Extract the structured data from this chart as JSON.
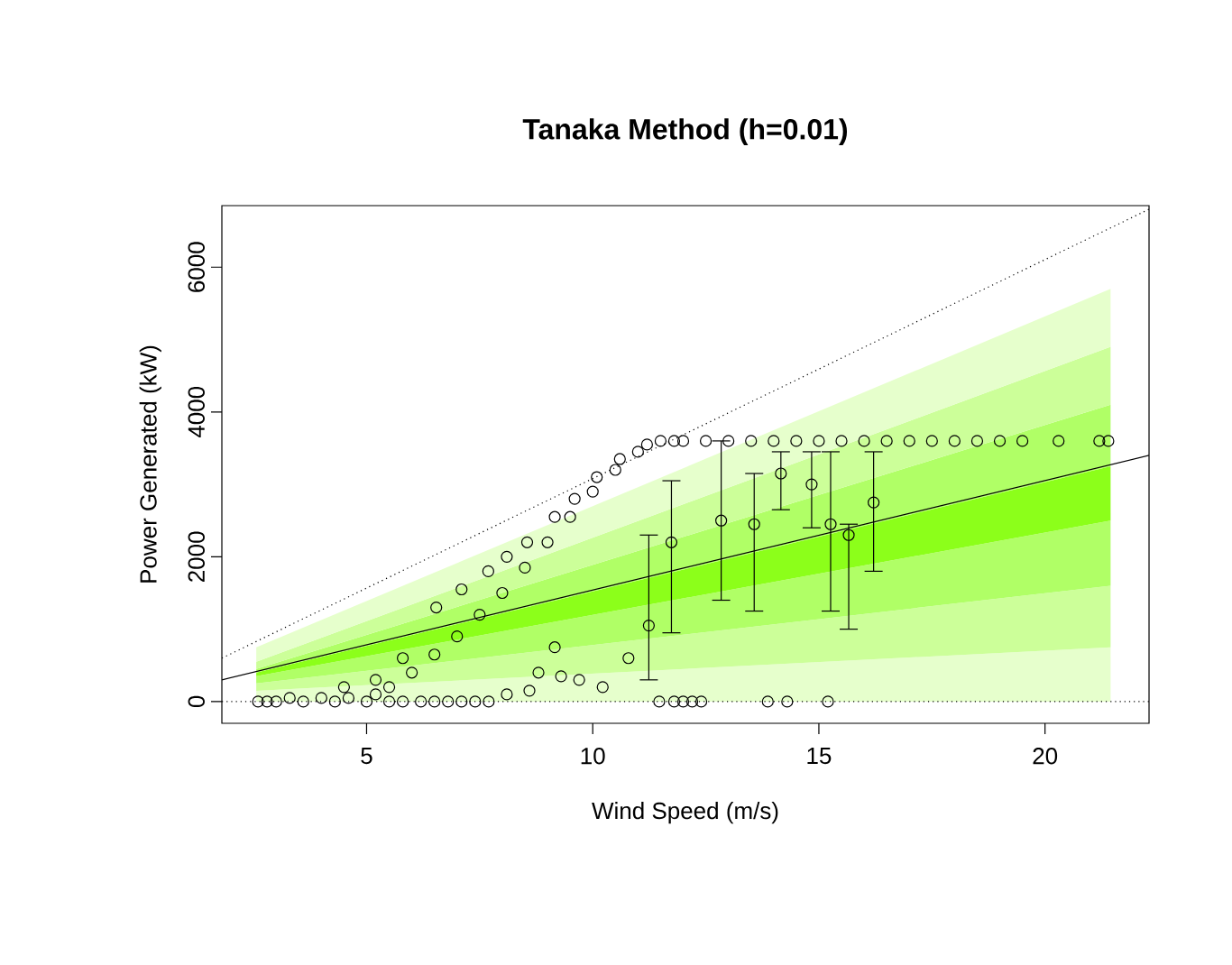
{
  "chart_data": {
    "type": "scatter",
    "title": "Tanaka Method (h=0.01)",
    "xlabel": "Wind Speed (m/s)",
    "ylabel": "Power Generated (kW)",
    "xlim": [
      1.8,
      22.3
    ],
    "ylim": [
      -300,
      6850
    ],
    "xticks": [
      5,
      10,
      15,
      20
    ],
    "stacked": true,
    "yticks": [
      0,
      2000,
      4000,
      6000
    ],
    "series": [
      {
        "type": "area",
        "color": "#e6ffcc",
        "x": [
          2.56,
          21.45
        ],
        "values": [
          150,
          750
        ]
      },
      {
        "type": "area",
        "color": "#ccff99",
        "x": [
          2.56,
          21.45
        ],
        "values": [
          100,
          850
        ]
      },
      {
        "type": "area",
        "color": "#b0ff66",
        "x": [
          2.56,
          21.45
        ],
        "values": [
          100,
          900
        ]
      },
      {
        "type": "area",
        "color": "#8cff1a",
        "x": [
          2.56,
          21.45
        ],
        "values": [
          50,
          750
        ]
      },
      {
        "type": "area",
        "color": "#b0ff66",
        "x": [
          2.56,
          21.45
        ],
        "values": [
          50,
          850
        ]
      },
      {
        "type": "area",
        "color": "#ccff99",
        "x": [
          2.56,
          21.45
        ],
        "values": [
          100,
          800
        ]
      },
      {
        "type": "area",
        "color": "#e6ffcc",
        "x": [
          2.56,
          21.45
        ],
        "values": [
          200,
          800
        ]
      },
      {
        "type": "line",
        "color": "#000000",
        "line_style": "solid",
        "marker": "none",
        "x": [
          1.8,
          22.3
        ],
        "values": [
          300,
          3400
        ]
      },
      {
        "type": "line",
        "color": "#000000",
        "line_style": "dotted",
        "marker": "none",
        "x": [
          1.8,
          22.3
        ],
        "values": [
          600,
          6800
        ]
      },
      {
        "color": "#000000",
        "marker": "circle",
        "x": [
          2.6,
          2.8,
          3.0,
          3.3,
          3.6,
          4.0,
          4.3,
          4.6,
          5.0,
          5.2,
          5.5,
          5.8,
          6.2,
          6.5,
          6.8,
          7.1,
          7.4,
          7.7,
          8.1,
          8.6,
          9.3,
          4.5,
          5.2,
          5.8,
          6.54,
          7.1,
          7.69,
          8.1,
          8.55,
          9.16,
          9.6,
          10.09,
          10.6,
          11.2,
          11.8,
          5.5,
          6.0,
          6.5,
          7.0,
          7.5,
          8.0,
          8.5,
          9.0,
          9.5,
          10.0,
          10.5,
          11.0,
          11.5,
          12.0,
          12.5,
          13.0,
          13.5,
          14.0,
          14.5,
          15.0,
          15.5,
          16.0,
          16.5,
          17.0,
          17.5,
          18.0,
          18.5,
          19.0,
          19.5,
          20.3,
          21.2,
          21.4,
          9.16,
          10.79,
          10.22,
          8.8,
          9.7,
          11.47,
          11.8,
          12.0,
          12.2,
          12.4,
          13.87,
          14.3,
          15.2,
          11.24,
          11.74,
          12.84,
          13.57,
          14.16,
          14.84,
          15.26,
          15.66,
          16.21
        ],
        "values": [
          0,
          0,
          0,
          50,
          0,
          50,
          0,
          50,
          0,
          100,
          0,
          0,
          0,
          0,
          0,
          0,
          0,
          0,
          100,
          150,
          350,
          200,
          300,
          600,
          1300,
          1550,
          1800,
          2000,
          2200,
          2550,
          2800,
          3100,
          3350,
          3550,
          3600,
          200,
          400,
          650,
          900,
          1200,
          1500,
          1850,
          2200,
          2550,
          2900,
          3200,
          3450,
          3600,
          3600,
          3600,
          3600,
          3600,
          3600,
          3600,
          3600,
          3600,
          3600,
          3600,
          3600,
          3600,
          3600,
          3600,
          3600,
          3600,
          3600,
          3600,
          3600,
          750,
          600,
          200,
          400,
          300,
          0,
          0,
          0,
          0,
          0,
          0,
          0,
          0,
          1050,
          2200,
          2500,
          2450,
          3150,
          3000,
          2450,
          2300,
          2750
        ],
        "errors": [
          null,
          null,
          null,
          null,
          null,
          null,
          null,
          null,
          null,
          null,
          null,
          null,
          null,
          null,
          null,
          null,
          null,
          null,
          null,
          null,
          null,
          null,
          null,
          null,
          null,
          null,
          null,
          null,
          null,
          null,
          null,
          null,
          null,
          null,
          null,
          null,
          null,
          null,
          null,
          null,
          null,
          null,
          null,
          null,
          null,
          null,
          null,
          null,
          null,
          null,
          null,
          null,
          null,
          null,
          null,
          null,
          null,
          null,
          null,
          null,
          null,
          null,
          null,
          null,
          null,
          null,
          null,
          null,
          null,
          null,
          null,
          null,
          null,
          null,
          null,
          null,
          null,
          null,
          null,
          null,
          [
            300,
            2300
          ],
          [
            950,
            3050
          ],
          [
            1400,
            3600
          ],
          [
            1250,
            3150
          ],
          [
            2650,
            3450
          ],
          [
            2400,
            3450
          ],
          [
            1250,
            3450
          ],
          [
            1000,
            2450
          ],
          [
            1800,
            3450
          ]
        ]
      }
    ],
    "ref_lines": [
      {
        "axis": "y",
        "value": 0,
        "line_style": "dotted",
        "color": "#000000"
      }
    ]
  }
}
